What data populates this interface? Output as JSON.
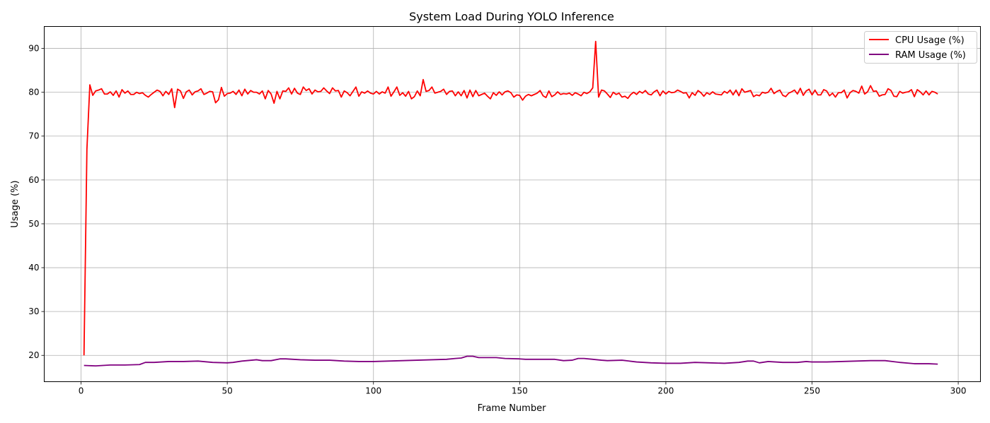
{
  "chart_data": {
    "type": "line",
    "title": "System Load During YOLO Inference",
    "xlabel": "Frame Number",
    "ylabel": "Usage (%)",
    "xlim": [
      -12.6,
      307.6
    ],
    "ylim": [
      14,
      95
    ],
    "xticks": [
      0,
      50,
      100,
      150,
      200,
      250,
      300
    ],
    "yticks": [
      20,
      30,
      40,
      50,
      60,
      70,
      80,
      90
    ],
    "grid": true,
    "legend": "top-right",
    "series": [
      {
        "name": "CPU Usage (%)",
        "color": "#ff0000",
        "x": [
          1,
          2,
          3,
          4,
          5,
          6,
          7,
          8,
          9,
          10,
          11,
          12,
          13,
          14,
          15,
          16,
          17,
          18,
          19,
          20,
          21,
          22,
          23,
          24,
          25,
          26,
          27,
          28,
          29,
          30,
          31,
          32,
          33,
          34,
          35,
          36,
          37,
          38,
          39,
          40,
          41,
          42,
          43,
          44,
          45,
          46,
          47,
          48,
          49,
          50,
          51,
          52,
          53,
          54,
          55,
          56,
          57,
          58,
          59,
          60,
          61,
          62,
          63,
          64,
          65,
          66,
          67,
          68,
          69,
          70,
          71,
          72,
          73,
          74,
          75,
          76,
          77,
          78,
          79,
          80,
          81,
          82,
          83,
          84,
          85,
          86,
          87,
          88,
          89,
          90,
          91,
          92,
          93,
          94,
          95,
          96,
          97,
          98,
          99,
          100,
          101,
          102,
          103,
          104,
          105,
          106,
          107,
          108,
          109,
          110,
          111,
          112,
          113,
          114,
          115,
          116,
          117,
          118,
          119,
          120,
          121,
          122,
          123,
          124,
          125,
          126,
          127,
          128,
          129,
          130,
          131,
          132,
          133,
          134,
          135,
          136,
          137,
          138,
          139,
          140,
          141,
          142,
          143,
          144,
          145,
          146,
          147,
          148,
          149,
          150,
          151,
          152,
          153,
          154,
          155,
          156,
          157,
          158,
          159,
          160,
          161,
          162,
          163,
          164,
          165,
          166,
          167,
          168,
          169,
          170,
          171,
          172,
          173,
          174,
          175,
          176,
          177,
          178,
          179,
          180,
          181,
          182,
          183,
          184,
          185,
          186,
          187,
          188,
          189,
          190,
          191,
          192,
          193,
          194,
          195,
          196,
          197,
          198,
          199,
          200,
          201,
          202,
          203,
          204,
          205,
          206,
          207,
          208,
          209,
          210,
          211,
          212,
          213,
          214,
          215,
          216,
          217,
          218,
          219,
          220,
          221,
          222,
          223,
          224,
          225,
          226,
          227,
          228,
          229,
          230,
          231,
          232,
          233,
          234,
          235,
          236,
          237,
          238,
          239,
          240,
          241,
          242,
          243,
          244,
          245,
          246,
          247,
          248,
          249,
          250,
          251,
          252,
          253,
          254,
          255,
          256,
          257,
          258,
          259,
          260,
          261,
          262,
          263,
          264,
          265,
          266,
          267,
          268,
          269,
          270,
          271,
          272,
          273,
          274,
          275,
          276,
          277,
          278,
          279,
          280,
          281,
          282,
          283,
          284,
          285,
          286,
          287,
          288,
          289,
          290,
          291,
          292,
          293
        ],
        "values": [
          20,
          67,
          81.7,
          79.3,
          80.3,
          80.5,
          80.8,
          79.6,
          79.6,
          80.1,
          79.3,
          80.3,
          78.9,
          80.6,
          79.8,
          80.3,
          79.5,
          79.5,
          80,
          79.7,
          79.9,
          79.3,
          78.9,
          79.5,
          80,
          80.5,
          80.2,
          79.2,
          80.2,
          79.5,
          80.8,
          76.5,
          80.7,
          80.3,
          78.6,
          80.1,
          80.5,
          79.4,
          80.1,
          80.3,
          80.8,
          79.5,
          79.8,
          80.2,
          80.1,
          77.6,
          78.3,
          81.1,
          79.1,
          79.7,
          79.8,
          80.2,
          79.5,
          80.5,
          79.2,
          80.7,
          79.6,
          80.4,
          80,
          80,
          79.6,
          80.3,
          78.5,
          80.4,
          79.6,
          77.5,
          80.2,
          78.5,
          80.3,
          80.2,
          81,
          79.6,
          80.9,
          79.8,
          79.5,
          81.2,
          80.4,
          80.8,
          79.6,
          80.5,
          80.1,
          80.2,
          81,
          80.3,
          79.7,
          81,
          80.3,
          80.4,
          78.9,
          80.3,
          79.9,
          79.2,
          80.2,
          81.2,
          79.1,
          80.1,
          79.8,
          80.3,
          79.8,
          79.6,
          80.2,
          79.6,
          80.1,
          79.8,
          81.2,
          79.1,
          80.1,
          81.2,
          79.3,
          79.9,
          79.1,
          80.2,
          78.5,
          79,
          80.3,
          79.2,
          82.9,
          80.2,
          80.4,
          81.2,
          79.8,
          80,
          80.2,
          80.7,
          79.5,
          80.2,
          80.3,
          79.2,
          80.1,
          79.2,
          80.4,
          78.7,
          80.5,
          79,
          80.4,
          79.2,
          79.5,
          79.8,
          79.1,
          78.5,
          79.9,
          79.3,
          80.1,
          79.4,
          80.1,
          80.3,
          79.9,
          78.9,
          79.4,
          79.3,
          78.2,
          79.1,
          79.5,
          79.2,
          79.5,
          79.8,
          80.4,
          79.2,
          78.8,
          80.3,
          79,
          79.4,
          80.1,
          79.5,
          79.7,
          79.6,
          79.8,
          79.3,
          79.9,
          79.6,
          79.2,
          80,
          79.7,
          80.1,
          81,
          91.6,
          78.9,
          80.5,
          80.3,
          79.6,
          78.8,
          80,
          79.5,
          79.8,
          78.9,
          79.1,
          78.6,
          79.5,
          80,
          79.5,
          80.2,
          79.8,
          80.4,
          79.6,
          79.4,
          80.1,
          80.5,
          79.2,
          80.3,
          79.6,
          80.2,
          79.9,
          80,
          80.5,
          80.2,
          79.8,
          79.9,
          78.7,
          79.9,
          79.3,
          80.4,
          79.9,
          79.1,
          79.9,
          79.5,
          80.1,
          79.6,
          79.5,
          79.4,
          80.2,
          79.8,
          80.5,
          79.4,
          80.5,
          79.2,
          80.8,
          80,
          80.2,
          80.4,
          79,
          79.4,
          79.2,
          80,
          79.8,
          80,
          80.9,
          79.7,
          80.2,
          80.5,
          79.3,
          79,
          79.8,
          80.1,
          80.5,
          79.6,
          80.9,
          79.3,
          80.3,
          80.7,
          79.4,
          80.5,
          79.4,
          79.4,
          80.6,
          80.3,
          79.2,
          79.8,
          78.9,
          79.9,
          79.9,
          80.5,
          78.7,
          79.9,
          80.4,
          80.2,
          79.8,
          81.4,
          79.6,
          80.1,
          81.5,
          80.2,
          80.3,
          79.1,
          79.4,
          79.5,
          80.8,
          80.4,
          79.1,
          79,
          80.2,
          79.8,
          80,
          80.1,
          80.6,
          79,
          80.6,
          80.1,
          79.4,
          80.3,
          79.4,
          80.2,
          80,
          79.6
        ]
      },
      {
        "name": "RAM Usage (%)",
        "color": "#800080",
        "x": [
          1,
          5,
          10,
          15,
          20,
          22,
          25,
          30,
          35,
          40,
          45,
          50,
          52,
          55,
          60,
          62,
          65,
          68,
          70,
          75,
          80,
          85,
          90,
          95,
          100,
          105,
          110,
          115,
          120,
          125,
          128,
          130,
          132,
          134,
          136,
          140,
          142,
          145,
          150,
          152,
          155,
          160,
          162,
          165,
          168,
          170,
          172,
          175,
          178,
          180,
          185,
          190,
          195,
          200,
          205,
          210,
          215,
          220,
          225,
          228,
          230,
          232,
          235,
          240,
          245,
          248,
          250,
          255,
          260,
          265,
          270,
          275,
          280,
          285,
          290,
          293
        ],
        "values": [
          17.7,
          17.6,
          17.8,
          17.8,
          17.9,
          18.4,
          18.4,
          18.6,
          18.6,
          18.7,
          18.4,
          18.3,
          18.4,
          18.7,
          19,
          18.8,
          18.8,
          19.2,
          19.2,
          19,
          18.9,
          18.9,
          18.7,
          18.6,
          18.6,
          18.7,
          18.8,
          18.9,
          19,
          19.1,
          19.3,
          19.4,
          19.8,
          19.8,
          19.5,
          19.5,
          19.5,
          19.3,
          19.2,
          19.1,
          19.1,
          19.1,
          19.1,
          18.8,
          18.9,
          19.3,
          19.3,
          19.1,
          18.9,
          18.8,
          18.9,
          18.5,
          18.3,
          18.2,
          18.2,
          18.4,
          18.3,
          18.2,
          18.4,
          18.7,
          18.7,
          18.3,
          18.6,
          18.4,
          18.4,
          18.6,
          18.5,
          18.5,
          18.6,
          18.7,
          18.8,
          18.8,
          18.4,
          18.1,
          18.1,
          18.0
        ]
      }
    ]
  }
}
